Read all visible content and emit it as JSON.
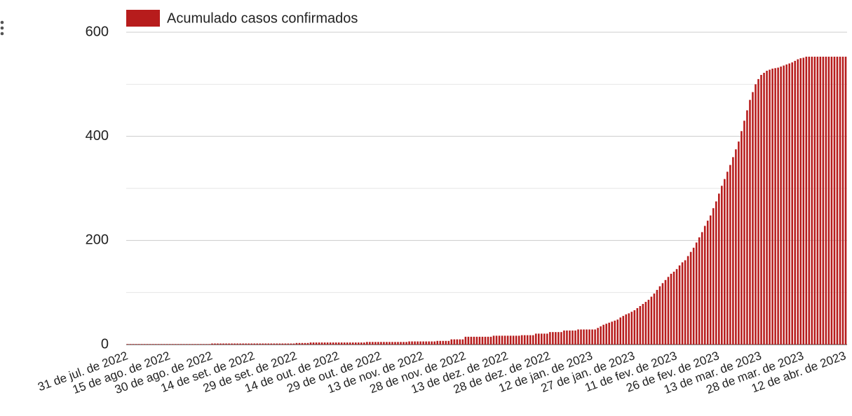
{
  "chart_data": {
    "type": "bar",
    "legend_position": "top-left",
    "color": "#b71c1c",
    "series": [
      {
        "name": "Acumulado casos confirmados",
        "color": "#b71c1c",
        "values": [
          1,
          1,
          1,
          1,
          1,
          1,
          1,
          1,
          1,
          1,
          1,
          1,
          1,
          1,
          1,
          1,
          1,
          1,
          1,
          1,
          1,
          1,
          1,
          1,
          1,
          1,
          1,
          1,
          1,
          1,
          2,
          2,
          2,
          2,
          2,
          2,
          2,
          2,
          2,
          2,
          2,
          2,
          2,
          2,
          2,
          2,
          2,
          2,
          2,
          2,
          2,
          2,
          2,
          2,
          2,
          2,
          2,
          2,
          2,
          2,
          3,
          3,
          3,
          3,
          3,
          4,
          4,
          4,
          4,
          4,
          4,
          4,
          4,
          4,
          4,
          4,
          4,
          4,
          4,
          4,
          4,
          4,
          4,
          4,
          4,
          5,
          5,
          5,
          5,
          5,
          5,
          5,
          5,
          5,
          5,
          5,
          5,
          5,
          5,
          5,
          6,
          6,
          6,
          6,
          6,
          6,
          6,
          6,
          6,
          6,
          7,
          7,
          7,
          7,
          7,
          10,
          10,
          10,
          10,
          10,
          15,
          15,
          15,
          15,
          15,
          15,
          15,
          15,
          15,
          15,
          17,
          17,
          17,
          17,
          17,
          17,
          17,
          17,
          17,
          17,
          18,
          18,
          18,
          18,
          18,
          21,
          21,
          21,
          21,
          21,
          24,
          24,
          24,
          24,
          24,
          27,
          27,
          27,
          27,
          27,
          29,
          29,
          29,
          29,
          29,
          29,
          29,
          32,
          35,
          38,
          40,
          42,
          44,
          46,
          48,
          52,
          55,
          58,
          60,
          63,
          66,
          70,
          74,
          78,
          82,
          86,
          92,
          98,
          105,
          112,
          118,
          124,
          130,
          136,
          140,
          145,
          152,
          158,
          162,
          170,
          178,
          186,
          196,
          206,
          216,
          228,
          238,
          248,
          262,
          275,
          290,
          305,
          318,
          332,
          345,
          360,
          375,
          390,
          410,
          430,
          450,
          470,
          485,
          500,
          510,
          518,
          522,
          526,
          528,
          530,
          531,
          532,
          534,
          536,
          538,
          540,
          542,
          545,
          548,
          550,
          551,
          553,
          553,
          553,
          553,
          553,
          553,
          553,
          553,
          553,
          553,
          553,
          553,
          553,
          553,
          553
        ]
      }
    ],
    "categories": [
      "31 de jul. de 2022",
      null,
      null,
      null,
      null,
      null,
      null,
      null,
      null,
      null,
      null,
      null,
      null,
      null,
      null,
      "15 de ago. de 2022",
      null,
      null,
      null,
      null,
      null,
      null,
      null,
      null,
      null,
      null,
      null,
      null,
      null,
      null,
      "30 de ago. de 2022",
      null,
      null,
      null,
      null,
      null,
      null,
      null,
      null,
      null,
      null,
      null,
      null,
      null,
      null,
      "14 de set. de 2022",
      null,
      null,
      null,
      null,
      null,
      null,
      null,
      null,
      null,
      null,
      null,
      null,
      null,
      null,
      "29 de set. de 2022",
      null,
      null,
      null,
      null,
      null,
      null,
      null,
      null,
      null,
      null,
      null,
      null,
      null,
      null,
      "14 de out. de 2022",
      null,
      null,
      null,
      null,
      null,
      null,
      null,
      null,
      null,
      null,
      null,
      null,
      null,
      null,
      "29 de out. de 2022",
      null,
      null,
      null,
      null,
      null,
      null,
      null,
      null,
      null,
      null,
      null,
      null,
      null,
      null,
      "13 de nov. de 2022",
      null,
      null,
      null,
      null,
      null,
      null,
      null,
      null,
      null,
      null,
      null,
      null,
      null,
      null,
      "28 de nov. de 2022",
      null,
      null,
      null,
      null,
      null,
      null,
      null,
      null,
      null,
      null,
      null,
      null,
      null,
      null,
      "13 de dez. de 2022",
      null,
      null,
      null,
      null,
      null,
      null,
      null,
      null,
      null,
      null,
      null,
      null,
      null,
      null,
      "28 de dez. de 2022",
      null,
      null,
      null,
      null,
      null,
      null,
      null,
      null,
      null,
      null,
      null,
      null,
      null,
      null,
      "12 de jan. de 2023",
      null,
      null,
      null,
      null,
      null,
      null,
      null,
      null,
      null,
      null,
      null,
      null,
      null,
      null,
      "27 de jan. de 2023",
      null,
      null,
      null,
      null,
      null,
      null,
      null,
      null,
      null,
      null,
      null,
      null,
      null,
      null,
      "11 de fev. de 2023",
      null,
      null,
      null,
      null,
      null,
      null,
      null,
      null,
      null,
      null,
      null,
      null,
      null,
      null,
      "26 de fev. de 2023",
      null,
      null,
      null,
      null,
      null,
      null,
      null,
      null,
      null,
      null,
      null,
      null,
      null,
      null,
      "13 de mar. de 2023",
      null,
      null,
      null,
      null,
      null,
      null,
      null,
      null,
      null,
      null,
      null,
      null,
      null,
      null,
      "28 de mar. de 2023",
      null,
      null,
      null,
      null,
      null,
      null,
      null,
      null,
      null,
      null,
      null,
      null,
      null,
      null,
      "12 de abr. de 2023"
    ],
    "ylim": [
      0,
      600
    ],
    "yticks": [
      0,
      200,
      400,
      600
    ],
    "minor_yticks": [
      100,
      300,
      500
    ],
    "grid": true
  }
}
